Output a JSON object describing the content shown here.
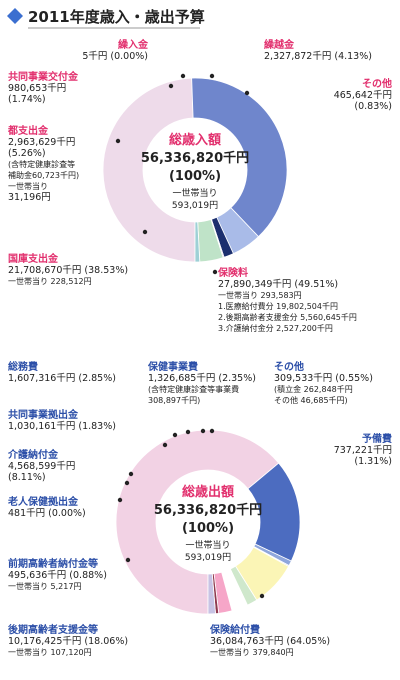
{
  "page_title": "2011年度歳入・歳出予算",
  "chart_data": [
    {
      "type": "pie",
      "title": "総歳入額",
      "center": {
        "label": "総歳入額",
        "total": "56,336,820千円",
        "percent": "(100%)",
        "per_household_label": "一世帯当り",
        "per_household_value": "593,019円"
      },
      "slices": [
        {
          "name": "保険料",
          "value": 27890349,
          "percent": 49.51,
          "color": "#eedbea",
          "label_lines": [
            "保険料",
            "27,890,349千円 (49.51%)",
            "一世帯当り 293,583円",
            "1.医療給付費分 19,802,504千円",
            "2.後期高齢者支援金分 5,560,645千円",
            "3.介護納付金分 2,527,200千円"
          ]
        },
        {
          "name": "国庫支出金",
          "value": 21708670,
          "percent": 38.53,
          "color": "#6f86cc",
          "label_lines": [
            "国庫支出金",
            "21,708,670千円 (38.53%)",
            "一世帯当り 228,512円"
          ]
        },
        {
          "name": "都支出金",
          "value": 2963629,
          "percent": 5.26,
          "color": "#a9bbe8",
          "label_lines": [
            "都支出金",
            "2,963,629千円",
            "(5.26%)",
            "(含特定健康診査等",
            "補助金60,723千円)",
            "一世帯当り",
            "31,196円"
          ]
        },
        {
          "name": "共同事業交付金",
          "value": 980653,
          "percent": 1.74,
          "color": "#1c2f6e",
          "label_lines": [
            "共同事業交付金",
            "980,653千円",
            "(1.74%)"
          ]
        },
        {
          "name": "繰入金",
          "value": 5,
          "percent": 0.0,
          "color": "#7b4f9a",
          "label_lines": [
            "繰入金",
            "5千円 (0.00%)"
          ]
        },
        {
          "name": "繰越金",
          "value": 2327872,
          "percent": 4.13,
          "color": "#bfe3c8",
          "label_lines": [
            "繰越金",
            "2,327,872千円 (4.13%)"
          ]
        },
        {
          "name": "その他",
          "value": 465642,
          "percent": 0.83,
          "color": "#9ed0d6",
          "label_lines": [
            "その他",
            "465,642千円",
            "(0.83%)"
          ]
        }
      ]
    },
    {
      "type": "pie",
      "title": "総歳出額",
      "center": {
        "label": "総歳出額",
        "total": "56,336,820千円",
        "percent": "(100%)",
        "per_household_label": "一世帯当り",
        "per_household_value": "593,019円"
      },
      "slices": [
        {
          "name": "保険給付費",
          "value": 36084763,
          "percent": 64.05,
          "color": "#f2d2e4",
          "label_lines": [
            "保険給付費",
            "36,084,763千円 (64.05%)",
            "一世帯当り 379,840円"
          ]
        },
        {
          "name": "後期高齢者支援金等",
          "value": 10176425,
          "percent": 18.06,
          "color": "#4c6cc0",
          "label_lines": [
            "後期高齢者支援金等",
            "10,176,425千円 (18.06%)",
            "一世帯当り 107,120円"
          ]
        },
        {
          "name": "前期高齢者納付金等",
          "value": 495636,
          "percent": 0.88,
          "color": "#8fa6dc",
          "label_lines": [
            "前期高齢者納付金等",
            "495,636千円 (0.88%)",
            "一世帯当り 5,217円"
          ]
        },
        {
          "name": "老人保健拠出金",
          "value": 481,
          "percent": 0.0,
          "color": "#555555",
          "label_lines": [
            "老人保健拠出金",
            "481千円 (0.00%)"
          ]
        },
        {
          "name": "介護納付金",
          "value": 4568599,
          "percent": 8.11,
          "color": "#fbf5b6",
          "label_lines": [
            "介護納付金",
            "4,568,599千円",
            "(8.11%)"
          ]
        },
        {
          "name": "共同事業拠出金",
          "value": 1030161,
          "percent": 1.83,
          "color": "#cfe8cc",
          "label_lines": [
            "共同事業拠出金",
            "1,030,161千円 (1.83%)"
          ]
        },
        {
          "name": "総務費",
          "value": 1607316,
          "percent": 2.85,
          "color": "#ffffff",
          "label_lines": [
            "総務費",
            "1,607,316千円 (2.85%)"
          ]
        },
        {
          "name": "保健事業費",
          "value": 1326685,
          "percent": 2.35,
          "color": "#f6a6c8",
          "label_lines": [
            "保健事業費",
            "1,326,685千円 (2.35%)",
            "(含特定健康診査等事業費",
            "308,897千円)"
          ]
        },
        {
          "name": "その他",
          "value": 309533,
          "percent": 0.55,
          "color": "#8f3a4f",
          "label_lines": [
            "その他",
            "309,533千円 (0.55%)",
            "(積立金 262,848千円",
            "その他 46,685千円)"
          ]
        },
        {
          "name": "予備費",
          "value": 737221,
          "percent": 1.31,
          "color": "#c8c3e4",
          "label_lines": [
            "予備費",
            "737,221千円",
            "(1.31%)"
          ]
        }
      ]
    }
  ]
}
